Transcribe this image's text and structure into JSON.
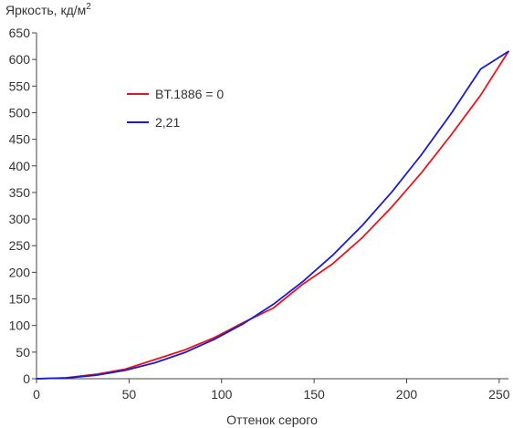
{
  "chart_data": {
    "type": "line",
    "title": "",
    "ylabel": "Яркость, кд/м",
    "ylabel_superscript": "2",
    "xlabel": "Оттенок серого",
    "xlim": [
      0,
      255
    ],
    "ylim": [
      0,
      650
    ],
    "xticks": [
      0,
      50,
      100,
      150,
      200,
      250
    ],
    "xtick_labels": [
      "0",
      "50",
      "100",
      "150",
      "200",
      "250"
    ],
    "yticks": [
      0,
      50,
      100,
      150,
      200,
      250,
      300,
      350,
      400,
      450,
      500,
      550,
      600,
      650
    ],
    "ytick_labels": [
      "0",
      "50",
      "100",
      "150",
      "200",
      "250",
      "300",
      "350",
      "400",
      "450",
      "500",
      "550",
      "600",
      "650"
    ],
    "grid": false,
    "legend_position": "upper-left",
    "series": [
      {
        "name": "BT.1886 = 0",
        "color": "#e8141c",
        "x": [
          0,
          16,
          32,
          48,
          64,
          80,
          96,
          112,
          128,
          144,
          160,
          176,
          192,
          208,
          224,
          240,
          255
        ],
        "y": [
          0,
          1.7,
          8.2,
          18,
          36,
          54,
          77,
          106,
          133,
          178,
          216,
          265,
          323,
          387,
          458,
          533,
          615
        ]
      },
      {
        "name": "2,21",
        "color": "#1a1ad0",
        "x": [
          0,
          16,
          32,
          48,
          64,
          80,
          96,
          112,
          128,
          144,
          160,
          176,
          192,
          208,
          224,
          240,
          255
        ],
        "y": [
          0,
          1.4,
          6.5,
          16,
          30,
          49,
          74,
          104,
          140,
          183,
          232,
          288,
          351,
          421,
          498,
          582,
          615
        ]
      }
    ]
  }
}
